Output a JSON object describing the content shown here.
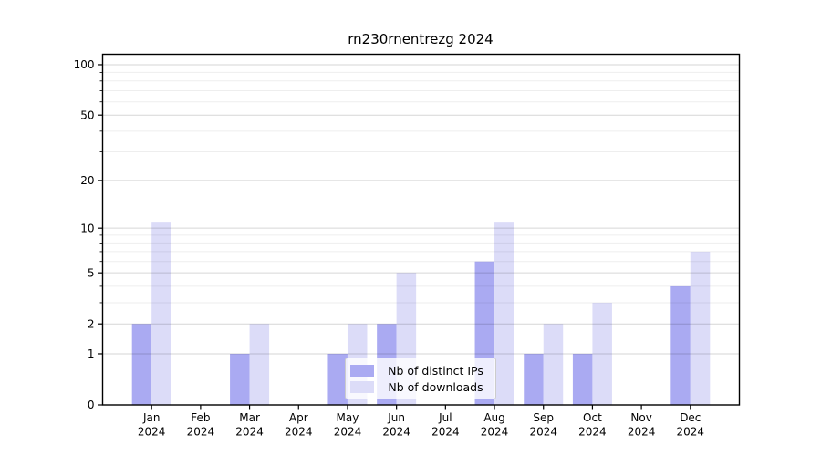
{
  "chart_data": {
    "type": "bar",
    "title": "rn230rnentrezg 2024",
    "xlabel": "",
    "ylabel": "",
    "categories": [
      "Jan",
      "Feb",
      "Mar",
      "Apr",
      "May",
      "Jun",
      "Jul",
      "Aug",
      "Sep",
      "Oct",
      "Nov",
      "Dec"
    ],
    "category_year": "2024",
    "series": [
      {
        "name": "Nb of distinct IPs",
        "color": "#aaaaf2",
        "values": [
          2,
          0,
          1,
          0,
          1,
          2,
          0,
          6,
          1,
          1,
          0,
          4
        ]
      },
      {
        "name": "Nb of downloads",
        "color": "#dcdcf8",
        "values": [
          11,
          0,
          2,
          0,
          2,
          5,
          0,
          11,
          2,
          3,
          0,
          7
        ]
      }
    ],
    "yscale": "log1p",
    "y_ticks": [
      0,
      1,
      2,
      5,
      10,
      20,
      50,
      100
    ],
    "y_minor_ticks": [
      3,
      4,
      6,
      7,
      8,
      9,
      30,
      40,
      60,
      70,
      80,
      90
    ],
    "ylim": [
      0,
      115.4
    ],
    "grid": "horizontal",
    "legend_position": "lower-center",
    "colors": {
      "spine": "#000000",
      "grid_major": "rgba(0,0,0,0.16)",
      "grid_minor": "rgba(0,0,0,0.065)",
      "background": "#ffffff"
    }
  }
}
